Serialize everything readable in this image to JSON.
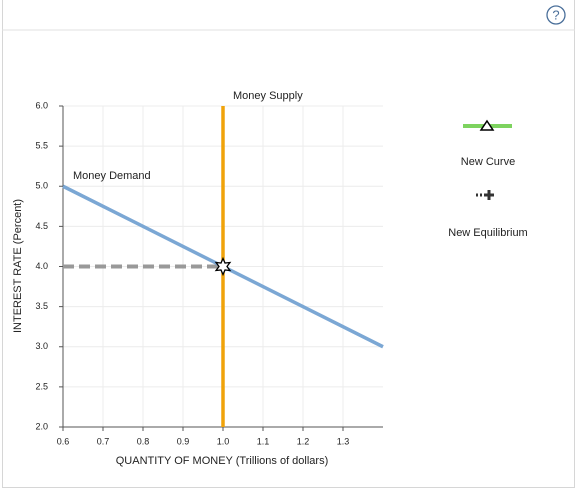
{
  "chart_data": {
    "type": "line",
    "xlabel": "QUANTITY OF MONEY (Trillions of dollars)",
    "ylabel": "INTEREST RATE (Percent)",
    "xlim": [
      0.6,
      1.4
    ],
    "ylim": [
      2,
      6
    ],
    "xticks": [
      0.6,
      0.7,
      0.8,
      0.9,
      {
        "value": 1,
        "label": "1.0"
      },
      1.1,
      1.2,
      1.3
    ],
    "yticks": [
      {
        "value": 2,
        "label": "2.0"
      },
      2.5,
      {
        "value": 3,
        "label": "3.0"
      },
      3.5,
      {
        "value": 4,
        "label": "4.0"
      },
      4.5,
      {
        "value": 5,
        "label": "5.0"
      },
      5.5,
      {
        "value": 6,
        "label": "6.0"
      }
    ],
    "grid": true,
    "series": [
      {
        "name": "Money Demand",
        "color": "#7ba7d4",
        "x": [
          0.6,
          1.4
        ],
        "values": [
          5,
          3
        ]
      },
      {
        "name": "Money Supply",
        "color": "#f0a30a",
        "x": [
          1,
          1
        ],
        "values": [
          2,
          6
        ]
      }
    ],
    "equilibrium": {
      "x": 1,
      "y": 4,
      "color": "#999999"
    },
    "tools": [
      {
        "label": "New Curve",
        "color": "#7dd35f"
      },
      {
        "label": "New Equilibrium",
        "color": "#333333"
      }
    ]
  }
}
